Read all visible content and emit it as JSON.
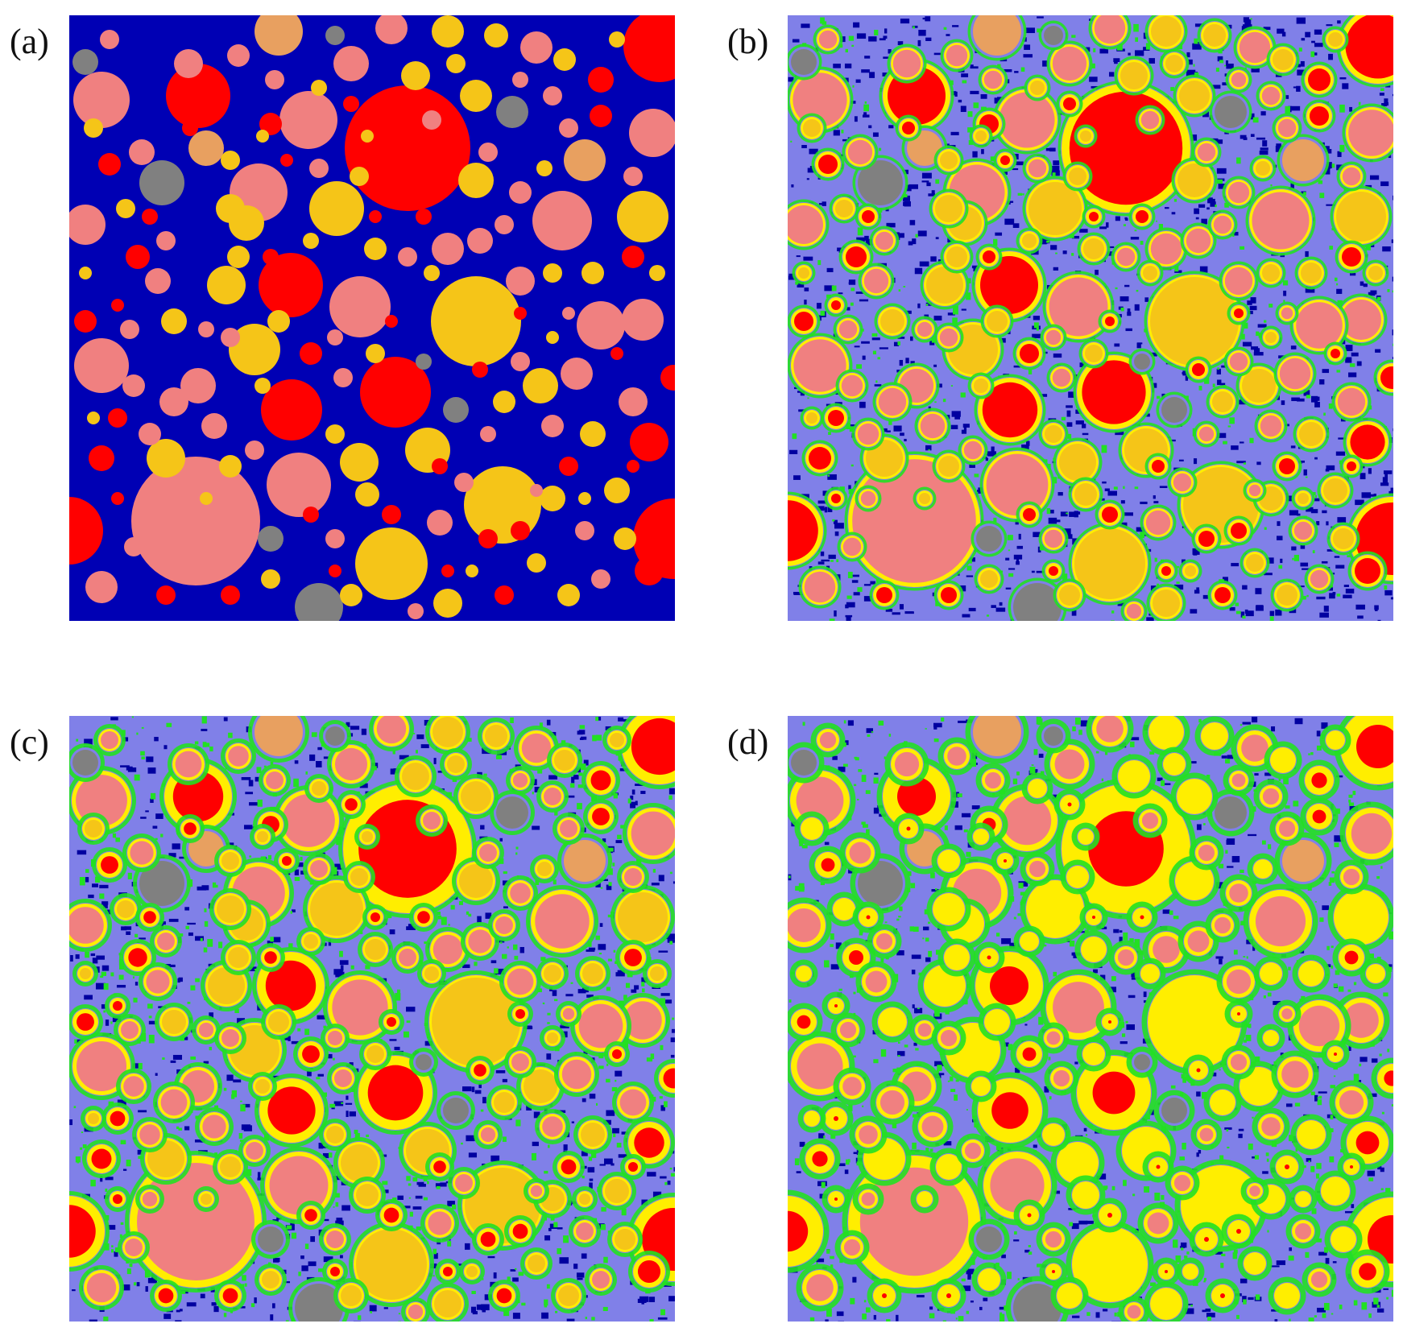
{
  "panels": [
    {
      "id": "a",
      "label": "(a)",
      "stage": 0
    },
    {
      "id": "b",
      "label": "(b)",
      "stage": 1
    },
    {
      "id": "c",
      "label": "(c)",
      "stage": 2
    },
    {
      "id": "d",
      "label": "(d)",
      "stage": 3
    }
  ],
  "colors": {
    "matrix_initial": "#0000b4",
    "matrix_hydrated": "#8080e8",
    "porosity_dark": "#0000a0",
    "hydrate_green": "#22e022",
    "rim_yellow": "#ffee00",
    "phase_red": "#ff0000",
    "phase_pink": "#f08080",
    "phase_gold": "#f5c518",
    "phase_tan": "#e8a060",
    "phase_gray": "#808080"
  }
}
